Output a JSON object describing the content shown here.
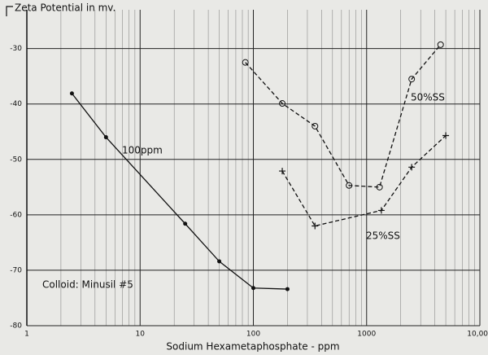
{
  "chart_data": {
    "type": "scatter",
    "title": "Zeta Potential in mv.",
    "x_label": "Sodium Hexametaphosphate - ppm",
    "annotation": "Colloid: Minusil #5",
    "xscale": "log",
    "xlim": [
      1,
      10000
    ],
    "xticks": [
      1,
      10,
      100,
      {
        "value": 1000,
        "label": "1000"
      },
      {
        "value": 10000,
        "label": "10,000"
      }
    ],
    "ylim": [
      -80,
      -23
    ],
    "yticks": [
      -30,
      -40,
      -50,
      -60,
      -70,
      -80
    ],
    "grid": true,
    "series": [
      {
        "name": "100ppm",
        "color": "#111111",
        "marker": "dot",
        "line": "solid",
        "x": [
          2.5,
          5,
          25,
          50,
          100,
          200
        ],
        "values": [
          -38.1,
          -46,
          -61.6,
          -68.4,
          -73.2,
          -73.4
        ]
      },
      {
        "name": "50%SS",
        "color": "#111111",
        "marker": "circle",
        "line": "dashed",
        "x": [
          85,
          180,
          350,
          700,
          1300,
          2500,
          4500
        ],
        "values": [
          -32.5,
          -39.9,
          -44,
          -54.7,
          -55,
          -35.5,
          -29.3
        ]
      },
      {
        "name": "25%SS",
        "color": "#111111",
        "marker": "plus",
        "line": "dashed",
        "x": [
          180,
          350,
          1350,
          2500,
          5000
        ],
        "values": [
          -52.1,
          -62,
          -59.2,
          -51.4,
          -45.7
        ]
      }
    ]
  }
}
